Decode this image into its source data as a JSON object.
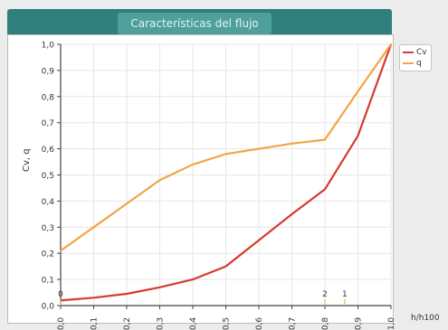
{
  "chart_data": {
    "type": "line",
    "title": "Características del flujo",
    "xlabel": "h/h100",
    "ylabel": "Cv, q",
    "xlim": [
      0,
      1
    ],
    "ylim": [
      0,
      1
    ],
    "x_ticks": [
      "0,0",
      "0,1",
      "0,2",
      "0,3",
      "0,4",
      "0,5",
      "0,6",
      "0,7",
      "0,8",
      "0,9",
      "1,0"
    ],
    "y_ticks": [
      "0,0",
      "0,1",
      "0,2",
      "0,3",
      "0,4",
      "0,5",
      "0,6",
      "0,7",
      "0,8",
      "0,9",
      "1,0"
    ],
    "grid": true,
    "legend_position": "right",
    "series": [
      {
        "name": "Cv",
        "color": "#d63a2f",
        "x": [
          0.0,
          0.1,
          0.2,
          0.3,
          0.4,
          0.5,
          0.6,
          0.7,
          0.8,
          0.9,
          1.0
        ],
        "y": [
          0.02,
          0.03,
          0.045,
          0.07,
          0.1,
          0.15,
          0.25,
          0.35,
          0.445,
          0.65,
          1.0
        ]
      },
      {
        "name": "q",
        "color": "#f2a447",
        "x": [
          0.0,
          0.1,
          0.2,
          0.3,
          0.4,
          0.5,
          0.6,
          0.7,
          0.8,
          0.9,
          1.0
        ],
        "y": [
          0.21,
          0.3,
          0.39,
          0.48,
          0.54,
          0.58,
          0.6,
          0.62,
          0.635,
          0.82,
          1.0
        ]
      }
    ],
    "annotations": [
      {
        "text": "2",
        "x": 0.8
      },
      {
        "text": "1",
        "x": 0.86
      },
      {
        "text": "0",
        "x": 0.0
      }
    ]
  }
}
